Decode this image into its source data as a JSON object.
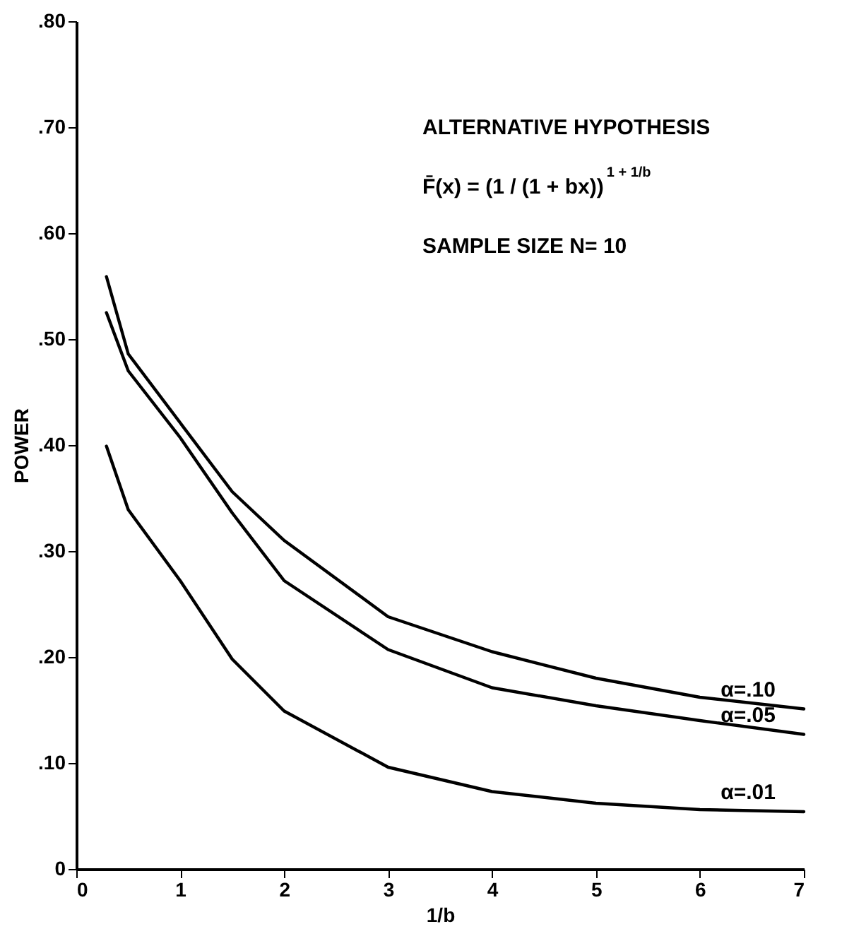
{
  "chart_data": {
    "type": "line",
    "xlabel": "1/b",
    "ylabel": "POWER",
    "x": [
      0.29,
      0.5,
      1,
      1.5,
      2,
      3,
      4,
      5,
      6,
      7
    ],
    "series": [
      {
        "name": "α=.10",
        "color": "#000000",
        "values": [
          0.559,
          0.486,
          0.421,
          0.356,
          0.31,
          0.238,
          0.205,
          0.18,
          0.162,
          0.151
        ]
      },
      {
        "name": "α=.05",
        "color": "#000000",
        "values": [
          0.525,
          0.47,
          0.407,
          0.336,
          0.272,
          0.207,
          0.171,
          0.154,
          0.14,
          0.127
        ]
      },
      {
        "name": "α=.01",
        "color": "#000000",
        "values": [
          0.399,
          0.339,
          0.272,
          0.198,
          0.149,
          0.096,
          0.073,
          0.062,
          0.056,
          0.054
        ]
      }
    ],
    "annotations": [
      "ALTERNATIVE HYPOTHESIS",
      "F̄(x) = (1 / (1 + bx))$^{1 + 1/b}$",
      "SAMPLE SIZE N= 10"
    ],
    "xlim": [
      0,
      7
    ],
    "xticks": [
      0,
      1,
      2,
      3,
      4,
      5,
      6,
      7
    ],
    "ylim": [
      0,
      0.8
    ],
    "yticks": [
      0,
      {
        "value": 0.1,
        "label": ".10"
      },
      {
        "value": 0.2,
        "label": ".20"
      },
      {
        "value": 0.3,
        "label": ".30"
      },
      {
        "value": 0.4,
        "label": ".40"
      },
      {
        "value": 0.5,
        "label": ".50"
      },
      {
        "value": 0.6,
        "label": ".60"
      },
      {
        "value": 0.7,
        "label": ".70"
      },
      {
        "value": 0.8,
        "label": ".80"
      }
    ],
    "grid": false,
    "legend": false,
    "marker": "none",
    "line_style": "solid"
  }
}
